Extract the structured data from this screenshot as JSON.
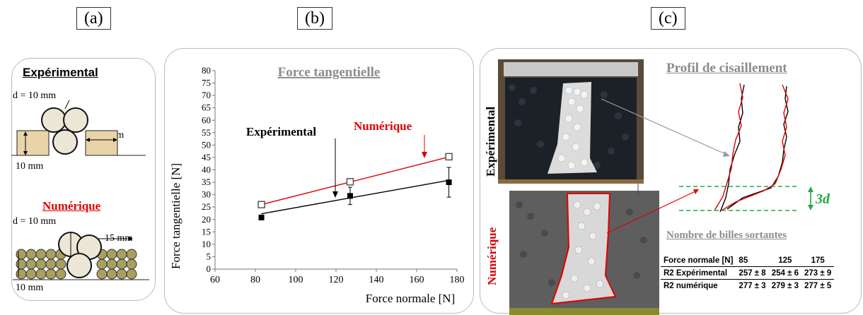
{
  "panels": {
    "a": "(a)",
    "b": "(b)",
    "c": "(c)"
  },
  "panel_a": {
    "exp_title": "Expérimental",
    "exp_diameter": "d = 10 mm",
    "exp_width": "15 mm",
    "exp_height": "10 mm",
    "num_title": "Numérique",
    "num_diameter": "d = 10 mm",
    "num_width": "15 mm",
    "num_height": "10 mm"
  },
  "chart_data": {
    "type": "scatter",
    "title": "Force tangentielle",
    "xlabel": "Force normale [N]",
    "ylabel": "Force tangentielle [N]",
    "xlim": [
      60,
      180
    ],
    "ylim": [
      0,
      80
    ],
    "xticks": [
      60,
      80,
      100,
      120,
      140,
      160,
      180
    ],
    "yticks": [
      0,
      5,
      10,
      15,
      20,
      25,
      30,
      35,
      40,
      45,
      50,
      55,
      60,
      65,
      70,
      75,
      80
    ],
    "annotations": [
      "Expérimental",
      "Numérique"
    ],
    "series": [
      {
        "name": "Expérimental",
        "color": "#000000",
        "marker": "filled-square",
        "x": [
          83,
          127,
          176
        ],
        "y": [
          20.8,
          29.5,
          35
        ],
        "err": [
          1,
          3.5,
          6
        ],
        "fit": {
          "x": [
            83,
            176
          ],
          "y": [
            22.3,
            35.8
          ]
        }
      },
      {
        "name": "Numérique",
        "color": "#e00000",
        "marker": "open-square",
        "x": [
          83,
          127,
          176
        ],
        "y": [
          26,
          35.2,
          45.3
        ],
        "fit": {
          "x": [
            83,
            176
          ],
          "y": [
            26,
            45.2
          ]
        }
      }
    ]
  },
  "panel_c": {
    "exp_label": "Expérimental",
    "num_label": "Numérique",
    "profile_title": "Profil de cisaillement",
    "band_label": "3d",
    "billes_title": "Nombre de billes sortantes",
    "table": {
      "header": [
        "Force normale [N]",
        "85",
        "125",
        "175"
      ],
      "rows": [
        [
          "R2 Expérimental",
          "257 ± 8",
          "254 ± 6",
          "273 ± 9"
        ],
        [
          "R2 numérique",
          "277 ± 3",
          "279 ± 3",
          "277 ± 5"
        ]
      ]
    },
    "colors": {
      "experimental": "#000000",
      "numerique": "#e00000",
      "band": "#22aa44"
    }
  }
}
